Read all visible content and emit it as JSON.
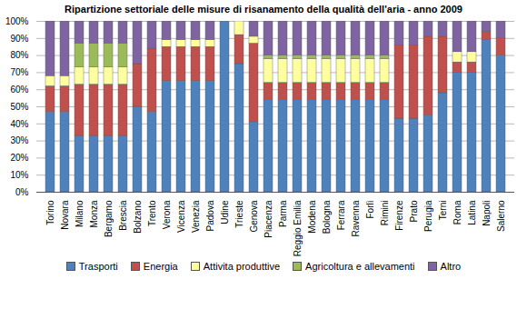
{
  "chart_data": {
    "type": "bar",
    "title": "Ripartizione settoriale delle misure di risanamento della qualità dell'aria - anno 2009",
    "stacked": true,
    "grid": true,
    "legend": "bottom",
    "categories": [
      "Torino",
      "Novara",
      "Milano",
      "Monza",
      "Bergamo",
      "Brescia",
      "Bolzano",
      "Trento",
      "Verona",
      "Vicenza",
      "Venezia",
      "Padova",
      "Udine",
      "Trieste",
      "Genova",
      "Piacenza",
      "Parma",
      "Reggio Emilia",
      "Modena",
      "Bologna",
      "Ferrara",
      "Ravenna",
      "Forlì",
      "Rimini",
      "Firenze",
      "Prato",
      "Perugia",
      "Terni",
      "Roma",
      "Latina",
      "Napoli",
      "Salerno"
    ],
    "series": [
      {
        "name": "Trasporti",
        "color": "#4f81bd",
        "values": [
          47,
          47,
          33,
          33,
          33,
          33,
          50,
          47,
          65,
          65,
          65,
          65,
          100,
          75,
          41,
          54,
          54,
          54,
          54,
          54,
          54,
          54,
          54,
          54,
          43,
          43,
          45,
          58,
          70,
          70,
          89,
          80
        ]
      },
      {
        "name": "Energia",
        "color": "#c0504d",
        "values": [
          15,
          15,
          30,
          30,
          30,
          30,
          25,
          37,
          20,
          20,
          20,
          20,
          0,
          17,
          46,
          10,
          10,
          10,
          10,
          10,
          10,
          10,
          10,
          10,
          43,
          43,
          46,
          33,
          6,
          6,
          5,
          10
        ]
      },
      {
        "name": "Attivita produttive",
        "color": "#ffffa0",
        "values": [
          6,
          6,
          10,
          10,
          10,
          10,
          0,
          0,
          4,
          4,
          4,
          4,
          0,
          8,
          4,
          14,
          14,
          14,
          14,
          14,
          14,
          14,
          14,
          14,
          0,
          0,
          0,
          0,
          6,
          6,
          0,
          0
        ]
      },
      {
        "name": "Agricoltura e allevamenti",
        "color": "#9bbb59",
        "values": [
          0,
          0,
          14,
          14,
          14,
          14,
          0,
          0,
          0,
          0,
          0,
          0,
          0,
          0,
          0,
          2,
          2,
          2,
          2,
          2,
          2,
          2,
          2,
          2,
          0,
          0,
          0,
          0,
          0,
          0,
          0,
          0
        ]
      },
      {
        "name": "Altro",
        "color": "#8064a2",
        "values": [
          32,
          32,
          13,
          13,
          13,
          13,
          25,
          16,
          11,
          11,
          11,
          11,
          0,
          0,
          9,
          20,
          20,
          20,
          20,
          20,
          20,
          20,
          20,
          20,
          14,
          14,
          9,
          9,
          18,
          18,
          6,
          10
        ]
      }
    ],
    "ylim": [
      0,
      100
    ],
    "yticks": [
      {
        "value": 0,
        "label": "0%"
      },
      {
        "value": 10,
        "label": "10%"
      },
      {
        "value": 20,
        "label": "20%"
      },
      {
        "value": 30,
        "label": "30%"
      },
      {
        "value": 40,
        "label": "40%"
      },
      {
        "value": 50,
        "label": "50%"
      },
      {
        "value": 60,
        "label": "60%"
      },
      {
        "value": 70,
        "label": "70%"
      },
      {
        "value": 80,
        "label": "80%"
      },
      {
        "value": 90,
        "label": "90%"
      },
      {
        "value": 100,
        "label": "100%"
      }
    ]
  }
}
